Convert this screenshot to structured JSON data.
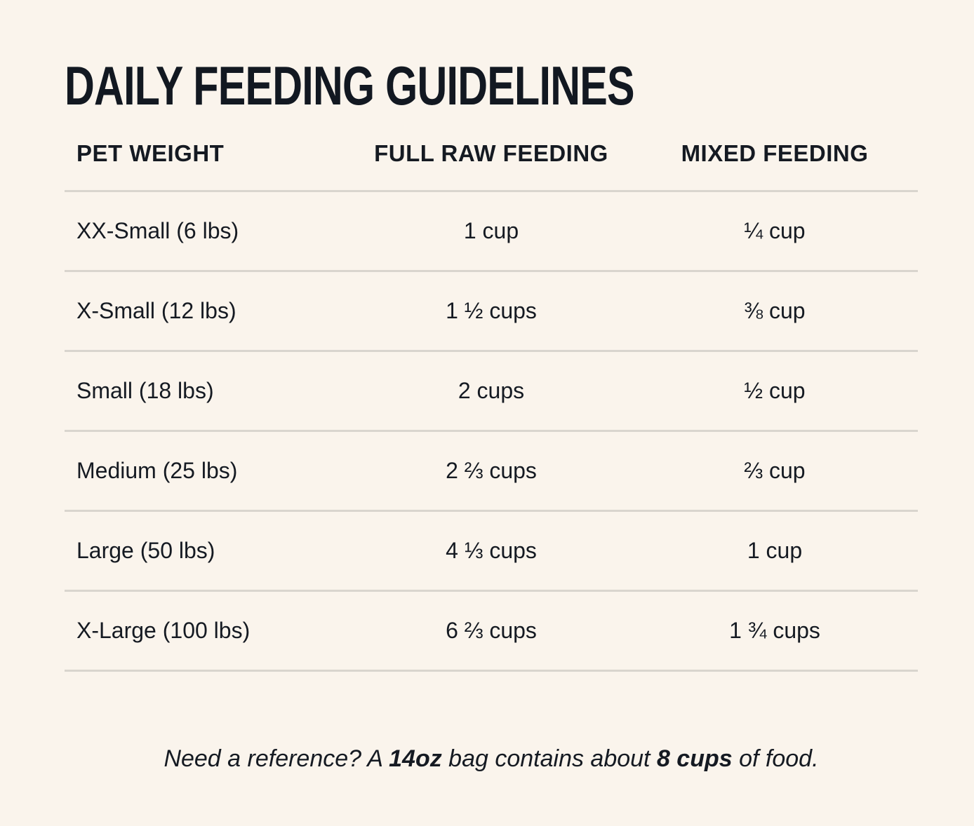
{
  "title": "DAILY FEEDING GUIDELINES",
  "columns": {
    "weight": "PET WEIGHT",
    "full_raw": "FULL RAW FEEDING",
    "mixed": "MIXED FEEDING"
  },
  "rows": [
    {
      "weight": "XX-Small (6 lbs)",
      "full_raw": "1 cup",
      "mixed": "¼ cup"
    },
    {
      "weight": "X-Small (12 lbs)",
      "full_raw": "1 ½ cups",
      "mixed": "⅜ cup"
    },
    {
      "weight": "Small (18 lbs)",
      "full_raw": "2 cups",
      "mixed": "½ cup"
    },
    {
      "weight": "Medium (25 lbs)",
      "full_raw": "2 ⅔ cups",
      "mixed": "⅔ cup"
    },
    {
      "weight": "Large (50 lbs)",
      "full_raw": "4 ⅓ cups",
      "mixed": "1 cup"
    },
    {
      "weight": "X-Large (100 lbs)",
      "full_raw": "6 ⅔ cups",
      "mixed": "1 ¾ cups"
    }
  ],
  "note": {
    "part1": "Need a reference? A ",
    "bold1": "14oz",
    "part2": " bag contains about ",
    "bold2": "8 cups",
    "part3": " of food."
  }
}
